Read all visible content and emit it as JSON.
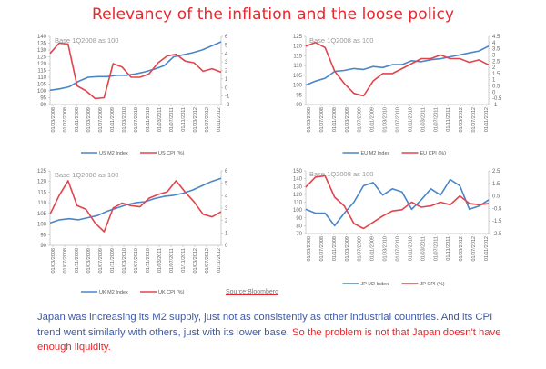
{
  "title": "Relevancy of the inflation and the loose policy",
  "source_label": "Source:Bloomberg",
  "paragraph": {
    "normal": "Japan was increasing its M2 supply, just not as consistently as other industrial countries. And its CPI trend went similarly with others, just with its lower base. ",
    "highlight": "So the problem is not that Japan doesn't have enough liquidity."
  },
  "colors": {
    "m2": "#4a86c8",
    "cpi": "#e0454d",
    "title": "#e8262b",
    "text": "#3d5aa8"
  },
  "chart_data": [
    {
      "id": "us",
      "type": "line",
      "title": "",
      "annotation": "Base 1Q2008 as 100",
      "x_tick_labels": [
        "01/03/2008",
        "01/07/2008",
        "01/11/2008",
        "01/03/2009",
        "01/07/2009",
        "01/11/2009",
        "01/03/2010",
        "01/07/2010",
        "01/11/2010",
        "01/03/2011",
        "01/07/2011",
        "01/11/2011",
        "01/03/2012",
        "01/07/2012",
        "01/11/2012"
      ],
      "left_axis": {
        "min": 90,
        "max": 140,
        "ticks": [
          90,
          95,
          100,
          105,
          110,
          115,
          120,
          125,
          130,
          135,
          140
        ]
      },
      "right_axis": {
        "min": -2,
        "max": 6,
        "ticks": [
          -2,
          -1,
          0,
          1,
          2,
          3,
          4,
          5,
          6
        ]
      },
      "series": [
        {
          "name": "US M2 Index",
          "axis": "left",
          "color": "#4a86c8",
          "values": [
            100.5,
            101.5,
            103,
            107,
            110,
            110.5,
            110.5,
            111.5,
            111.5,
            112.5,
            114,
            116,
            118.5,
            125,
            126.5,
            128,
            130,
            133,
            136
          ]
        },
        {
          "name": "US CPI (%)",
          "axis": "right",
          "color": "#e0454d",
          "values": [
            4,
            5.2,
            5.1,
            0.2,
            -0.4,
            -1.3,
            -1.2,
            2.8,
            2.4,
            1.2,
            1.2,
            1.6,
            2.9,
            3.7,
            3.9,
            3.1,
            2.9,
            1.9,
            2.2,
            1.8
          ]
        }
      ],
      "legend": [
        "US M2 Index",
        "US CPI (%)"
      ],
      "legend_position": "bottom"
    },
    {
      "id": "eu",
      "type": "line",
      "annotation": "Base 1Q2008 as 100",
      "x_tick_labels": [
        "01/03/2008",
        "01/07/2008",
        "01/11/2008",
        "01/03/2009",
        "01/07/2009",
        "01/11/2009",
        "01/03/2010",
        "01/07/2010",
        "01/11/2010",
        "01/03/2011",
        "01/07/2011",
        "01/11/2011",
        "01/03/2012",
        "01/07/2012",
        "01/11/2012"
      ],
      "left_axis": {
        "min": 90,
        "max": 125,
        "ticks": [
          90,
          95,
          100,
          105,
          110,
          115,
          120,
          125
        ]
      },
      "right_axis": {
        "min": -1,
        "max": 4.5,
        "ticks": [
          -1,
          -0.5,
          0,
          0.5,
          1,
          1.5,
          2,
          2.5,
          3,
          3.5,
          4,
          4.5
        ]
      },
      "series": [
        {
          "name": "EU M2 Index",
          "axis": "left",
          "color": "#4a86c8",
          "values": [
            100,
            102,
            103.5,
            107,
            107.5,
            108.5,
            108,
            109.5,
            109,
            110.5,
            110.5,
            112.5,
            112,
            113,
            113.5,
            114.5,
            115.5,
            116.5,
            117.5,
            120
          ]
        },
        {
          "name": "EU CPI (%)",
          "axis": "right",
          "color": "#e0454d",
          "values": [
            3.7,
            4,
            3.6,
            1.7,
            0.7,
            -0.1,
            -0.3,
            0.9,
            1.5,
            1.5,
            1.9,
            2.3,
            2.7,
            2.7,
            3,
            2.7,
            2.7,
            2.4,
            2.6,
            2.2
          ]
        }
      ],
      "legend": [
        "EU M2 Index",
        "EU CPI (%)"
      ],
      "legend_position": "bottom"
    },
    {
      "id": "uk",
      "type": "line",
      "annotation": "Base 1Q2008 as 100",
      "x_tick_labels": [
        "01/03/2008",
        "01/07/2008",
        "01/11/2008",
        "01/03/2009",
        "01/07/2009",
        "01/11/2009",
        "01/03/2010",
        "01/07/2010",
        "01/11/2010",
        "01/03/2011",
        "01/07/2011",
        "01/11/2011",
        "01/03/2012",
        "01/07/2012",
        "01/11/2012"
      ],
      "left_axis": {
        "min": 90,
        "max": 125,
        "ticks": [
          90,
          95,
          100,
          105,
          110,
          115,
          120,
          125
        ]
      },
      "right_axis": {
        "min": 0,
        "max": 6,
        "ticks": [
          0,
          1,
          2,
          3,
          4,
          5,
          6
        ]
      },
      "series": [
        {
          "name": "UK M2 Index",
          "axis": "left",
          "color": "#4a86c8",
          "values": [
            100.5,
            102,
            102.5,
            102,
            103,
            104,
            106,
            107.5,
            109,
            110,
            110.5,
            112,
            113,
            113.5,
            114.5,
            116,
            118,
            120,
            121.5
          ]
        },
        {
          "name": "UK CPI (%)",
          "axis": "right",
          "color": "#e0454d",
          "values": [
            2.5,
            4,
            5.2,
            3.2,
            2.9,
            1.8,
            1.1,
            3,
            3.4,
            3.2,
            3.1,
            3.8,
            4.1,
            4.3,
            5.2,
            4.3,
            3.5,
            2.5,
            2.3,
            2.7
          ]
        }
      ],
      "legend": [
        "UK M2 Index",
        "UK CPI (%)"
      ],
      "legend_position": "bottom"
    },
    {
      "id": "jp",
      "type": "line",
      "annotation": "Base 1Q2008 as 100",
      "x_tick_labels": [
        "01/03/2008",
        "01/07/2008",
        "01/11/2008",
        "01/03/2009",
        "01/07/2009",
        "01/11/2009",
        "01/03/2010",
        "01/07/2010",
        "01/11/2010",
        "01/03/2011",
        "01/07/2011",
        "01/11/2011",
        "01/03/2012",
        "01/07/2012",
        "01/11/2012"
      ],
      "left_axis": {
        "min": 70,
        "max": 150,
        "ticks": [
          70,
          80,
          90,
          100,
          110,
          120,
          130,
          140,
          150
        ]
      },
      "right_axis": {
        "min": -2.5,
        "max": 2.5,
        "ticks": [
          -2.5,
          -1.5,
          -0.5,
          0.5,
          1.5,
          2.5
        ]
      },
      "series": [
        {
          "name": "JP M2 Index",
          "axis": "left",
          "color": "#4a86c8",
          "values": [
            101,
            96,
            96,
            80,
            96,
            110,
            131,
            135,
            119,
            127,
            123,
            101,
            113,
            127,
            119,
            139,
            131,
            101,
            105,
            113
          ]
        },
        {
          "name": "JP CPI (%)",
          "axis": "right",
          "color": "#e0454d",
          "values": [
            1.2,
            2,
            2.1,
            0.4,
            -0.3,
            -1.7,
            -2.1,
            -1.6,
            -1.1,
            -0.7,
            -0.6,
            0,
            -0.4,
            -0.3,
            0,
            -0.2,
            0.5,
            -0.1,
            -0.2,
            -0.1
          ]
        }
      ],
      "legend": [
        "JP M2 Index",
        "JP CPI (%)"
      ],
      "legend_position": "bottom"
    }
  ]
}
